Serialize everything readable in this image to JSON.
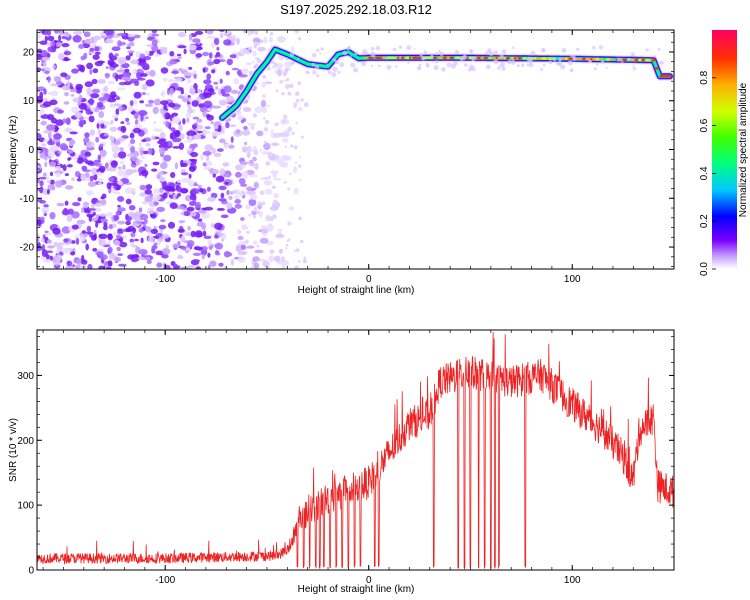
{
  "chart_data": [
    {
      "type": "heatmap",
      "title": "S197.2025.292.18.03.R12",
      "xlabel": "Height of straight line (km)",
      "ylabel": "Frequency (Hz)",
      "xlim": [
        -163,
        150
      ],
      "ylim": [
        -24.5,
        24.5
      ],
      "x_ticks": [
        -100,
        0,
        100
      ],
      "y_ticks": [
        -20,
        -10,
        0,
        10,
        20
      ],
      "ridge": {
        "description_points": [
          {
            "x": -72,
            "y": 6.5
          },
          {
            "x": -65,
            "y": 9
          },
          {
            "x": -60,
            "y": 12
          },
          {
            "x": -55,
            "y": 15.5
          },
          {
            "x": -50,
            "y": 18
          },
          {
            "x": -46,
            "y": 20.5
          },
          {
            "x": -40,
            "y": 19.5
          },
          {
            "x": -30,
            "y": 17.5
          },
          {
            "x": -20,
            "y": 17
          },
          {
            "x": -15,
            "y": 19.5
          },
          {
            "x": -10,
            "y": 20
          },
          {
            "x": -5,
            "y": 18.7
          },
          {
            "x": 0,
            "y": 18.8
          },
          {
            "x": 50,
            "y": 18.8
          },
          {
            "x": 100,
            "y": 18.6
          },
          {
            "x": 140,
            "y": 18.3
          },
          {
            "x": 143,
            "y": 15
          },
          {
            "x": 148,
            "y": 15
          }
        ]
      },
      "colorbar": {
        "label": "Normalized spectral amplitude",
        "ticks": [
          0.0,
          0.2,
          0.4,
          0.6,
          0.8
        ],
        "tick_labels": [
          "0.0",
          "0.2",
          "0.4",
          "0.6",
          "0.8"
        ],
        "range": [
          0,
          1
        ],
        "colors": [
          "#ffffff",
          "#7a00ff",
          "#0000ff",
          "#00c8ff",
          "#00ff80",
          "#40ff00",
          "#d0ff00",
          "#ffb000",
          "#ff3000",
          "#ff0060"
        ]
      }
    },
    {
      "type": "line",
      "xlabel": "Height of straight line (km)",
      "ylabel": "SNR (10 * v/v)",
      "xlim": [
        -163,
        150
      ],
      "ylim": [
        0,
        370
      ],
      "x_ticks": [
        -100,
        0,
        100
      ],
      "y_ticks": [
        0,
        100,
        200,
        300
      ],
      "series": [
        {
          "name": "SNR",
          "color": "#ee2222",
          "envelope": [
            {
              "x": -163,
              "y": 18
            },
            {
              "x": -100,
              "y": 18
            },
            {
              "x": -45,
              "y": 22
            },
            {
              "x": -38,
              "y": 35
            },
            {
              "x": -35,
              "y": 80
            },
            {
              "x": -20,
              "y": 110
            },
            {
              "x": 0,
              "y": 135
            },
            {
              "x": 10,
              "y": 180
            },
            {
              "x": 20,
              "y": 225
            },
            {
              "x": 30,
              "y": 240
            },
            {
              "x": 35,
              "y": 290
            },
            {
              "x": 50,
              "y": 305
            },
            {
              "x": 70,
              "y": 290
            },
            {
              "x": 85,
              "y": 300
            },
            {
              "x": 100,
              "y": 255
            },
            {
              "x": 115,
              "y": 215
            },
            {
              "x": 125,
              "y": 175
            },
            {
              "x": 130,
              "y": 140
            },
            {
              "x": 133,
              "y": 215
            },
            {
              "x": 140,
              "y": 235
            },
            {
              "x": 142,
              "y": 130
            },
            {
              "x": 150,
              "y": 120
            }
          ],
          "dropouts_x": [
            -35,
            -32,
            -29,
            -26,
            -24,
            -22,
            -19,
            -16,
            -13,
            -10,
            -7,
            -4,
            3,
            5,
            32,
            44,
            47,
            50,
            54,
            57,
            60,
            62,
            64,
            77
          ]
        }
      ]
    }
  ]
}
